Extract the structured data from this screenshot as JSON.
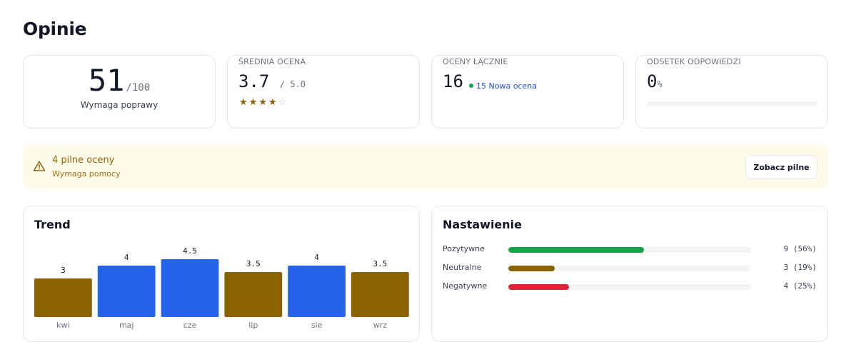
{
  "page": {
    "title": "Opinie"
  },
  "kpis": {
    "score": {
      "value": "51",
      "suffix": "/100",
      "label": "Wymaga poprawy"
    },
    "average": {
      "label": "ŚREDNIA OCENA",
      "value": "3.7",
      "suffix": "/ 5.0",
      "stars_filled": 4,
      "stars_total": 5
    },
    "total": {
      "label": "OCENY ŁĄCZNIE",
      "value": "16",
      "new_count": "15",
      "new_label": "Nowa ocena"
    },
    "response_rate": {
      "label": "ODSETEK ODPOWIEDZI",
      "value": "0",
      "suffix": "%",
      "fraction": 0
    }
  },
  "alert": {
    "title": "4 pilne oceny",
    "subtitle": "Wymaga pomocy",
    "button": "Zobacz pilne",
    "icon": "warning-triangle-icon",
    "color": "#92620a"
  },
  "trend": {
    "title": "Trend"
  },
  "chart_data": {
    "type": "bar",
    "categories": [
      "kwi",
      "maj",
      "cze",
      "lip",
      "sie",
      "wrz"
    ],
    "values": [
      3,
      4,
      4.5,
      3.5,
      4,
      3.5
    ],
    "value_labels": [
      "3",
      "4",
      "4.5",
      "3.5",
      "4",
      "3.5"
    ],
    "colors": [
      "#8a6300",
      "#2563eb",
      "#2563eb",
      "#8a6300",
      "#2563eb",
      "#8a6300"
    ]
  },
  "sentiment": {
    "title": "Nastawienie",
    "rows": [
      {
        "label": "Pozytywne",
        "value": "9 (56%)",
        "fraction": 0.56,
        "color": "#16a34a"
      },
      {
        "label": "Neutralne",
        "value": "3 (19%)",
        "fraction": 0.19,
        "color": "#8a6300"
      },
      {
        "label": "Negatywne",
        "value": "4 (25%)",
        "fraction": 0.25,
        "color": "#dc2637"
      }
    ]
  }
}
